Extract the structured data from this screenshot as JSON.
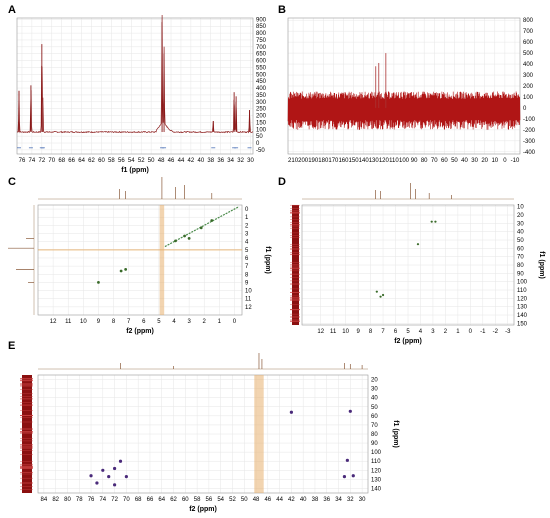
{
  "panels": {
    "a": "A",
    "b": "B",
    "c": "C",
    "d": "D",
    "e": "E"
  },
  "chart_data": [
    {
      "type": "line",
      "panel": "A",
      "xlabel": "f1 (ppm)",
      "x_ticks": [
        76,
        74,
        72,
        70,
        68,
        66,
        64,
        62,
        60,
        58,
        56,
        54,
        52,
        50,
        48,
        46,
        44,
        42,
        40,
        38,
        36,
        34,
        32,
        30
      ],
      "y_ticks": [
        900,
        850,
        800,
        750,
        700,
        650,
        600,
        550,
        500,
        450,
        400,
        350,
        300,
        250,
        200,
        150,
        100,
        50,
        0,
        -50
      ],
      "xlim": [
        77,
        29.5
      ],
      "ylim": [
        -80,
        910
      ],
      "x_reversed": true,
      "baseline": 80,
      "peaks": [
        {
          "x": 76.6,
          "y": 380
        },
        {
          "x": 74.2,
          "y": 420
        },
        {
          "x": 72.0,
          "y": 720
        },
        {
          "x": 71.8,
          "y": 330
        },
        {
          "x": 47.8,
          "y": 880
        },
        {
          "x": 47.4,
          "y": 650
        },
        {
          "x": 37.5,
          "y": 160
        },
        {
          "x": 33.3,
          "y": 370
        },
        {
          "x": 32.9,
          "y": 340
        },
        {
          "x": 30.2,
          "y": 240
        }
      ]
    },
    {
      "type": "line",
      "panel": "B",
      "x_ticks": [
        210,
        200,
        190,
        180,
        170,
        160,
        150,
        140,
        130,
        120,
        110,
        100,
        90,
        80,
        70,
        60,
        50,
        40,
        30,
        20,
        10,
        0,
        -10
      ],
      "y_ticks": [
        800,
        700,
        600,
        500,
        400,
        300,
        200,
        100,
        0,
        -100,
        -200,
        -300,
        -400
      ],
      "xlim": [
        215,
        -15
      ],
      "ylim": [
        -420,
        820
      ],
      "x_reversed": true,
      "noise_band": [
        -200,
        150
      ],
      "peaks": [
        {
          "x": 128,
          "y": 380
        },
        {
          "x": 125,
          "y": 410
        },
        {
          "x": 118,
          "y": 500
        }
      ]
    },
    {
      "type": "scatter",
      "panel": "C",
      "xlabel": "f2 (ppm)",
      "ylabel": "f1 (ppm)",
      "x_ticks": [
        12,
        11,
        10,
        9,
        8,
        7,
        6,
        5,
        4,
        3,
        2,
        1,
        0
      ],
      "y_ticks": [
        0,
        1,
        2,
        3,
        4,
        5,
        6,
        7,
        8,
        9,
        10,
        11,
        12
      ],
      "xlim": [
        13,
        -0.5
      ],
      "ylim": [
        -0.5,
        13
      ],
      "points": [
        {
          "x": 9.0,
          "y": 9.0
        },
        {
          "x": 7.5,
          "y": 7.6
        },
        {
          "x": 7.2,
          "y": 7.4
        },
        {
          "x": 3.9,
          "y": 3.9
        },
        {
          "x": 3.3,
          "y": 3.3
        },
        {
          "x": 3.0,
          "y": 3.6
        },
        {
          "x": 2.2,
          "y": 2.3
        },
        {
          "x": 1.5,
          "y": 1.4
        }
      ]
    },
    {
      "type": "scatter",
      "panel": "D",
      "xlabel": "f2 (ppm)",
      "ylabel": "f1 (ppm)",
      "x_ticks": [
        12,
        11,
        10,
        9,
        8,
        7,
        6,
        5,
        4,
        3,
        2,
        1,
        0,
        -1,
        -2,
        -3
      ],
      "y_ticks": [
        10,
        20,
        30,
        40,
        50,
        60,
        70,
        80,
        90,
        100,
        110,
        120,
        130,
        140,
        150
      ],
      "xlim": [
        13.5,
        -3.5
      ],
      "ylim": [
        8,
        152
      ],
      "points": [
        {
          "x": 3.1,
          "y": 28
        },
        {
          "x": 2.8,
          "y": 28
        },
        {
          "x": 4.2,
          "y": 55
        },
        {
          "x": 7.5,
          "y": 112
        },
        {
          "x": 7.2,
          "y": 118
        },
        {
          "x": 7.0,
          "y": 116
        }
      ]
    },
    {
      "type": "scatter",
      "panel": "E",
      "xlabel": "f2 (ppm)",
      "ylabel": "f1 (ppm)",
      "x_ticks": [
        84,
        82,
        80,
        78,
        76,
        74,
        72,
        70,
        68,
        66,
        64,
        62,
        60,
        58,
        56,
        54,
        52,
        50,
        48,
        46,
        44,
        42,
        40,
        38,
        36,
        34,
        32,
        30
      ],
      "y_ticks": [
        20,
        30,
        40,
        50,
        60,
        70,
        80,
        90,
        100,
        110,
        120,
        130,
        140
      ],
      "xlim": [
        85,
        29
      ],
      "ylim": [
        15,
        145
      ],
      "points": [
        {
          "x": 76,
          "y": 126
        },
        {
          "x": 75,
          "y": 134
        },
        {
          "x": 74,
          "y": 120
        },
        {
          "x": 73,
          "y": 127
        },
        {
          "x": 72,
          "y": 118
        },
        {
          "x": 71,
          "y": 110
        },
        {
          "x": 72,
          "y": 136
        },
        {
          "x": 70,
          "y": 127
        },
        {
          "x": 32.5,
          "y": 109
        },
        {
          "x": 31.5,
          "y": 126
        },
        {
          "x": 32,
          "y": 55
        },
        {
          "x": 33,
          "y": 127
        },
        {
          "x": 42,
          "y": 56
        }
      ]
    }
  ]
}
